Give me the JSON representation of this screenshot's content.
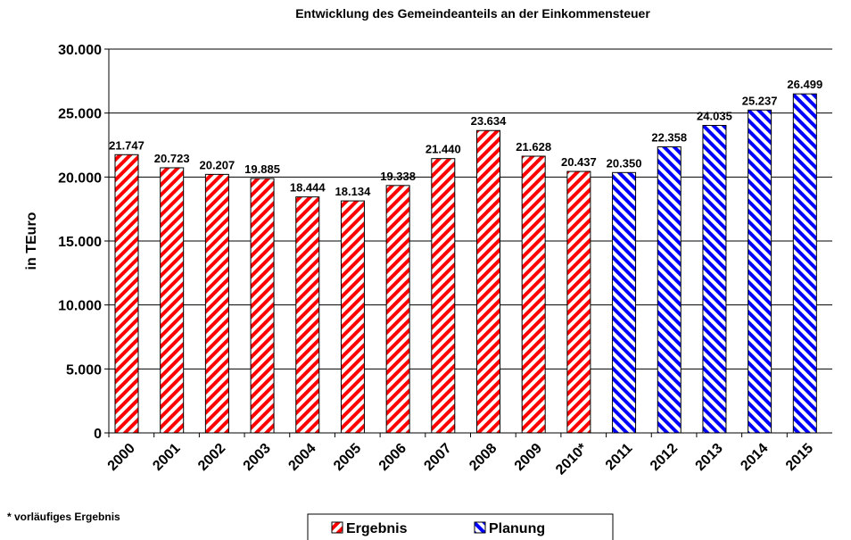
{
  "chart_data": {
    "type": "bar",
    "title": "Entwicklung des Gemeindeanteils an der Einkommensteuer",
    "y_label": "in TEuro",
    "footnote": "* vorläufiges Ergebnis",
    "categories": [
      "2000",
      "2001",
      "2002",
      "2003",
      "2004",
      "2005",
      "2006",
      "2007",
      "2008",
      "2009",
      "2010*",
      "2011",
      "2012",
      "2013",
      "2014",
      "2015"
    ],
    "series": [
      {
        "name": "Ergebnis",
        "color": "#ff0000",
        "values": [
          21747,
          20723,
          20207,
          19885,
          18444,
          18134,
          19338,
          21440,
          23634,
          21628,
          20437,
          null,
          null,
          null,
          null,
          null
        ],
        "value_labels": [
          "21.747",
          "20.723",
          "20.207",
          "19.885",
          "18.444",
          "18.134",
          "19.338",
          "21.440",
          "23.634",
          "21.628",
          "20.437",
          null,
          null,
          null,
          null,
          null
        ]
      },
      {
        "name": "Planung",
        "color": "#0000ff",
        "values": [
          null,
          null,
          null,
          null,
          null,
          null,
          null,
          null,
          null,
          null,
          null,
          20350,
          22358,
          24035,
          25237,
          26499
        ],
        "value_labels": [
          null,
          null,
          null,
          null,
          null,
          null,
          null,
          null,
          null,
          null,
          null,
          "20.350",
          "22.358",
          "24.035",
          "25.237",
          "26.499"
        ]
      }
    ],
    "ylim": [
      0,
      30000
    ],
    "yticks": [
      {
        "value": 0,
        "label": "0"
      },
      {
        "value": 5000,
        "label": "5.000"
      },
      {
        "value": 10000,
        "label": "10.000"
      },
      {
        "value": 15000,
        "label": "15.000"
      },
      {
        "value": 20000,
        "label": "20.000"
      },
      {
        "value": 25000,
        "label": "25.000"
      },
      {
        "value": 30000,
        "label": "30.000"
      }
    ],
    "grid": true,
    "legend": "bottom"
  }
}
